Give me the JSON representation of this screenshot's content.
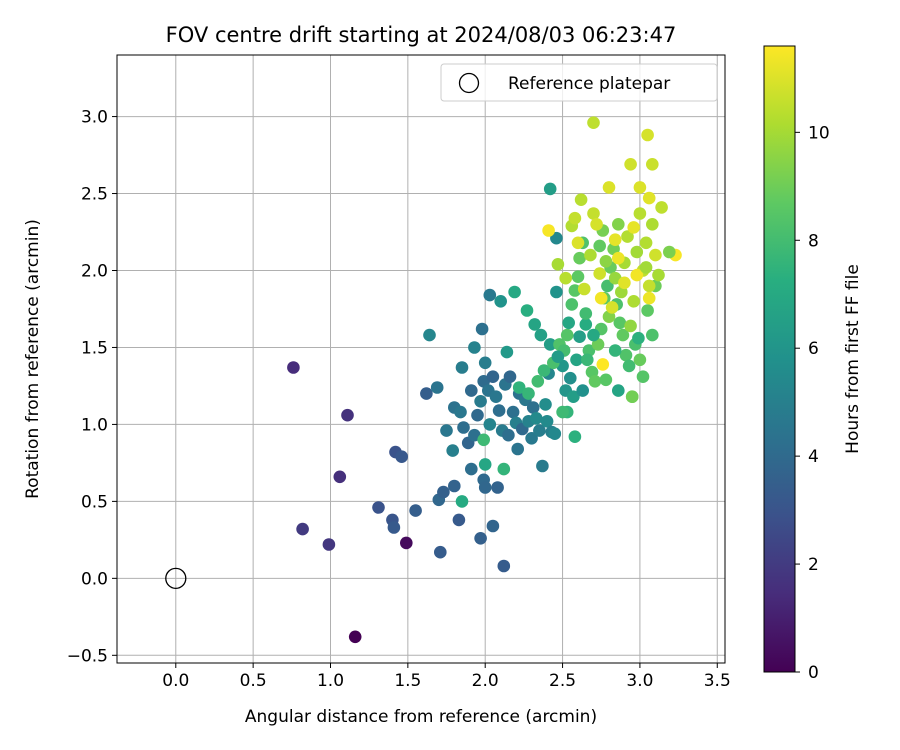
{
  "chart_data": {
    "type": "scatter",
    "title": "FOV centre drift starting at 2024/08/03 06:23:47",
    "xlabel": "Angular distance from reference (arcmin)",
    "ylabel": "Rotation from reference (arcmin)",
    "xlim": [
      -0.38,
      3.55
    ],
    "ylim": [
      -0.55,
      3.4
    ],
    "xticks": [
      0.0,
      0.5,
      1.0,
      1.5,
      2.0,
      2.5,
      3.0,
      3.5
    ],
    "xtick_labels": [
      "0.0",
      "0.5",
      "1.0",
      "1.5",
      "2.0",
      "2.5",
      "3.0",
      "3.5"
    ],
    "yticks": [
      -0.5,
      0.0,
      0.5,
      1.0,
      1.5,
      2.0,
      2.5,
      3.0
    ],
    "ytick_labels": [
      "−0.5",
      "0.0",
      "0.5",
      "1.0",
      "1.5",
      "2.0",
      "2.5",
      "3.0"
    ],
    "grid": true,
    "legend": {
      "position": "top-right",
      "entries": [
        {
          "label": "Reference platepar",
          "marker": "open-circle"
        }
      ]
    },
    "reference_point": {
      "x": 0.0,
      "y": 0.0
    },
    "colorbar": {
      "label": "Hours from first FF file",
      "colormap": "viridis",
      "range": [
        0,
        11.6
      ],
      "ticks": [
        0,
        2,
        4,
        6,
        8,
        10
      ],
      "tick_labels": [
        "0",
        "2",
        "4",
        "6",
        "8",
        "10"
      ]
    },
    "points": [
      [
        0.76,
        1.37,
        1.5
      ],
      [
        1.11,
        1.06,
        1.7
      ],
      [
        1.06,
        0.66,
        1.6
      ],
      [
        0.82,
        0.32,
        2.0
      ],
      [
        0.99,
        0.22,
        1.9
      ],
      [
        1.49,
        0.23,
        0.3
      ],
      [
        1.16,
        -0.38,
        0.0
      ],
      [
        1.31,
        0.46,
        3.0
      ],
      [
        1.4,
        0.38,
        3.1
      ],
      [
        1.41,
        0.33,
        3.3
      ],
      [
        1.42,
        0.82,
        3.0
      ],
      [
        1.46,
        0.79,
        3.2
      ],
      [
        1.55,
        0.44,
        3.5
      ],
      [
        1.71,
        0.17,
        3.4
      ],
      [
        1.97,
        0.26,
        3.6
      ],
      [
        2.05,
        0.34,
        3.8
      ],
      [
        2.12,
        0.08,
        3.4
      ],
      [
        1.7,
        0.51,
        3.9
      ],
      [
        1.73,
        0.56,
        3.6
      ],
      [
        1.8,
        0.6,
        3.7
      ],
      [
        1.83,
        0.38,
        3.3
      ],
      [
        1.91,
        0.71,
        4.2
      ],
      [
        1.99,
        0.64,
        4.0
      ],
      [
        2.0,
        0.59,
        3.9
      ],
      [
        2.08,
        0.59,
        3.7
      ],
      [
        1.62,
        1.2,
        3.5
      ],
      [
        1.69,
        1.24,
        4.5
      ],
      [
        1.75,
        0.96,
        4.6
      ],
      [
        1.79,
        0.83,
        5.0
      ],
      [
        1.8,
        1.11,
        4.4
      ],
      [
        1.84,
        1.08,
        4.6
      ],
      [
        1.86,
        0.98,
        4.2
      ],
      [
        1.89,
        0.88,
        3.8
      ],
      [
        1.91,
        1.22,
        4.0
      ],
      [
        1.93,
        0.93,
        4.3
      ],
      [
        1.95,
        1.06,
        4.0
      ],
      [
        1.97,
        1.15,
        4.8
      ],
      [
        1.99,
        1.28,
        4.1
      ],
      [
        2.0,
        1.4,
        4.9
      ],
      [
        2.02,
        1.22,
        4.5
      ],
      [
        2.03,
        1.0,
        5.2
      ],
      [
        2.05,
        1.31,
        3.8
      ],
      [
        2.07,
        1.18,
        4.6
      ],
      [
        2.09,
        1.09,
        4.2
      ],
      [
        2.11,
        0.96,
        4.8
      ],
      [
        2.13,
        1.26,
        4.5
      ],
      [
        2.15,
        0.93,
        4.2
      ],
      [
        2.16,
        1.31,
        3.9
      ],
      [
        2.18,
        1.08,
        4.3
      ],
      [
        2.2,
        1.01,
        5.0
      ],
      [
        2.21,
        0.84,
        4.5
      ],
      [
        2.22,
        1.2,
        4.4
      ],
      [
        2.24,
        0.97,
        4.0
      ],
      [
        2.26,
        1.16,
        4.6
      ],
      [
        2.28,
        1.02,
        5.1
      ],
      [
        2.3,
        0.91,
        4.7
      ],
      [
        2.31,
        1.11,
        4.3
      ],
      [
        2.33,
        1.04,
        5.5
      ],
      [
        2.35,
        0.96,
        4.9
      ],
      [
        2.37,
        0.73,
        4.8
      ],
      [
        2.39,
        1.13,
        5.6
      ],
      [
        2.4,
        1.02,
        5.5
      ],
      [
        2.41,
        1.33,
        5.3
      ],
      [
        2.43,
        0.95,
        5.0
      ],
      [
        2.45,
        0.94,
        5.4
      ],
      [
        1.64,
        1.58,
        5.3
      ],
      [
        1.85,
        1.37,
        4.9
      ],
      [
        1.93,
        1.5,
        5.1
      ],
      [
        1.98,
        1.62,
        4.3
      ],
      [
        2.03,
        1.84,
        4.7
      ],
      [
        2.1,
        1.8,
        5.9
      ],
      [
        2.14,
        1.47,
        6.2
      ],
      [
        2.19,
        1.86,
        7.0
      ],
      [
        2.27,
        1.74,
        7.3
      ],
      [
        2.32,
        1.65,
        6.8
      ],
      [
        2.36,
        1.58,
        6.6
      ],
      [
        2.42,
        1.52,
        6.4
      ],
      [
        2.46,
        1.86,
        5.9
      ],
      [
        2.5,
        1.38,
        6.1
      ],
      [
        2.52,
        1.22,
        6.0
      ],
      [
        2.55,
        1.3,
        5.7
      ],
      [
        2.57,
        1.18,
        6.4
      ],
      [
        2.59,
        1.42,
        6.8
      ],
      [
        2.61,
        1.57,
        6.5
      ],
      [
        2.63,
        1.22,
        5.8
      ],
      [
        2.65,
        1.65,
        7.2
      ],
      [
        2.42,
        2.53,
        6.4
      ],
      [
        2.46,
        2.21,
        5.4
      ],
      [
        2.53,
        1.08,
        7.6
      ],
      [
        2.58,
        0.92,
        7.4
      ],
      [
        1.85,
        0.5,
        7.1
      ],
      [
        2.0,
        0.74,
        6.9
      ],
      [
        2.12,
        0.71,
        7.6
      ],
      [
        1.99,
        0.9,
        7.9
      ],
      [
        2.22,
        1.24,
        7.5
      ],
      [
        2.28,
        1.2,
        7.7
      ],
      [
        2.34,
        1.28,
        8.0
      ],
      [
        2.38,
        1.35,
        7.8
      ],
      [
        2.44,
        1.4,
        8.2
      ],
      [
        2.48,
        1.52,
        8.4
      ],
      [
        2.5,
        1.08,
        7.9
      ],
      [
        2.51,
        1.48,
        8.1
      ],
      [
        2.53,
        1.58,
        8.5
      ],
      [
        2.56,
        1.78,
        8.3
      ],
      [
        2.58,
        1.87,
        8.6
      ],
      [
        2.6,
        1.96,
        8.7
      ],
      [
        2.61,
        2.08,
        8.9
      ],
      [
        2.63,
        2.18,
        8.4
      ],
      [
        2.65,
        1.72,
        8.0
      ],
      [
        2.67,
        1.48,
        8.2
      ],
      [
        2.69,
        1.34,
        8.6
      ],
      [
        2.71,
        1.28,
        8.8
      ],
      [
        2.73,
        1.52,
        9.0
      ],
      [
        2.75,
        1.62,
        8.5
      ],
      [
        2.77,
        1.82,
        8.7
      ],
      [
        2.79,
        1.9,
        8.1
      ],
      [
        2.81,
        2.02,
        8.9
      ],
      [
        2.83,
        2.14,
        9.1
      ],
      [
        2.85,
        1.78,
        8.3
      ],
      [
        2.87,
        1.66,
        8.6
      ],
      [
        2.89,
        1.58,
        8.8
      ],
      [
        2.91,
        1.45,
        8.4
      ],
      [
        2.93,
        1.38,
        8.0
      ],
      [
        2.95,
        1.18,
        9.0
      ],
      [
        2.97,
        1.52,
        8.2
      ],
      [
        3.0,
        1.42,
        8.9
      ],
      [
        3.02,
        1.31,
        8.5
      ],
      [
        3.05,
        1.74,
        8.7
      ],
      [
        3.08,
        1.58,
        8.3
      ],
      [
        3.1,
        1.9,
        9.0
      ],
      [
        2.74,
        2.16,
        8.8
      ],
      [
        2.76,
        2.26,
        9.2
      ],
      [
        2.78,
        2.06,
        9.6
      ],
      [
        2.8,
        1.7,
        9.4
      ],
      [
        2.84,
        1.95,
        9.8
      ],
      [
        2.86,
        2.3,
        9.4
      ],
      [
        2.88,
        1.86,
        9.9
      ],
      [
        2.9,
        2.05,
        10.1
      ],
      [
        2.92,
        2.22,
        10.3
      ],
      [
        2.94,
        1.64,
        9.7
      ],
      [
        2.96,
        1.8,
        10.2
      ],
      [
        2.98,
        2.12,
        10.0
      ],
      [
        3.0,
        2.37,
        10.4
      ],
      [
        3.02,
        2.0,
        10.5
      ],
      [
        3.04,
        2.18,
        10.3
      ],
      [
        3.06,
        1.9,
        10.6
      ],
      [
        3.08,
        2.3,
        10.2
      ],
      [
        3.1,
        2.1,
        10.8
      ],
      [
        3.12,
        1.97,
        10.1
      ],
      [
        3.14,
        2.41,
        10.5
      ],
      [
        2.56,
        2.29,
        10.3
      ],
      [
        2.58,
        2.34,
        10.6
      ],
      [
        2.6,
        2.18,
        11.0
      ],
      [
        2.62,
        2.46,
        10.4
      ],
      [
        2.7,
        2.37,
        10.6
      ],
      [
        2.72,
        2.3,
        10.9
      ],
      [
        2.74,
        1.98,
        10.8
      ],
      [
        2.8,
        2.54,
        11.0
      ],
      [
        2.84,
        2.2,
        11.2
      ],
      [
        2.94,
        2.69,
        10.8
      ],
      [
        3.0,
        2.54,
        11.0
      ],
      [
        3.05,
        2.88,
        10.9
      ],
      [
        3.08,
        2.69,
        10.7
      ],
      [
        3.06,
        2.47,
        11.1
      ],
      [
        2.7,
        2.96,
        10.5
      ],
      [
        2.41,
        2.26,
        11.5
      ],
      [
        2.75,
        1.82,
        11.4
      ],
      [
        2.76,
        1.39,
        11.6
      ],
      [
        3.06,
        1.82,
        11.3
      ],
      [
        3.23,
        2.1,
        11.5
      ],
      [
        2.98,
        1.97,
        11.4
      ],
      [
        2.47,
        2.04,
        10.1
      ],
      [
        2.52,
        1.95,
        10.4
      ],
      [
        2.64,
        1.88,
        10.7
      ],
      [
        2.68,
        2.1,
        10.2
      ],
      [
        2.82,
        1.76,
        10.9
      ],
      [
        2.86,
        2.08,
        11.3
      ],
      [
        2.9,
        1.92,
        11.1
      ],
      [
        2.96,
        2.28,
        11.2
      ],
      [
        3.04,
        2.02,
        10.0
      ],
      [
        3.19,
        2.12,
        9.3
      ],
      [
        2.95,
        1.18,
        9.1
      ],
      [
        2.86,
        1.22,
        6.8
      ],
      [
        2.78,
        1.29,
        8.6
      ],
      [
        2.84,
        1.48,
        7.6
      ],
      [
        2.99,
        1.56,
        7.4
      ],
      [
        2.7,
        1.58,
        7.0
      ],
      [
        2.66,
        1.42,
        7.8
      ],
      [
        2.54,
        1.66,
        6.9
      ],
      [
        2.47,
        1.44,
        6.3
      ]
    ]
  }
}
